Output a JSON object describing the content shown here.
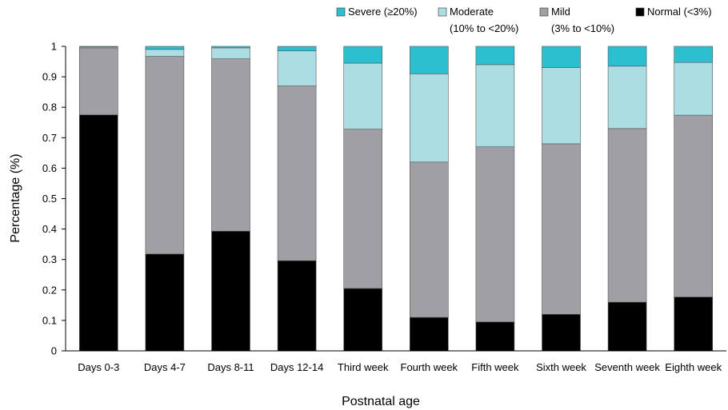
{
  "chart_data": {
    "type": "bar",
    "stacked": true,
    "categories": [
      "Days 0-3",
      "Days 4-7",
      "Days 8-11",
      "Days 12-14",
      "Third week",
      "Fourth week",
      "Fifth week",
      "Sixth week",
      "Seventh week",
      "Eighth week"
    ],
    "series": [
      {
        "name": "Normal (<3%)",
        "color": "#000000",
        "values": [
          0.775,
          0.318,
          0.393,
          0.296,
          0.205,
          0.11,
          0.095,
          0.12,
          0.16,
          0.177
        ]
      },
      {
        "name": "Mild",
        "name_line2": "(3% to <10%)",
        "color": "#a0a0a4",
        "values": [
          0.22,
          0.649,
          0.566,
          0.574,
          0.523,
          0.51,
          0.575,
          0.56,
          0.57,
          0.597
        ]
      },
      {
        "name": "Moderate",
        "name_line2": "(10% to <20%)",
        "color": "#abdde3",
        "values": [
          0.003,
          0.023,
          0.036,
          0.115,
          0.217,
          0.29,
          0.27,
          0.25,
          0.205,
          0.173
        ]
      },
      {
        "name": "Severe (≥20%)",
        "color": "#2bbfcf",
        "values": [
          0.002,
          0.01,
          0.005,
          0.015,
          0.055,
          0.09,
          0.06,
          0.07,
          0.065,
          0.053
        ]
      }
    ],
    "xlabel": "Postnatal age",
    "ylabel": "Percentage (%)",
    "ylim": [
      0,
      1
    ],
    "yticks": [
      "0",
      "0.1",
      "0.2",
      "0.3",
      "0.4",
      "0.5",
      "0.6",
      "0.7",
      "0.8",
      "0.9",
      "1"
    ],
    "legend_position": "top-right",
    "grid": false
  }
}
